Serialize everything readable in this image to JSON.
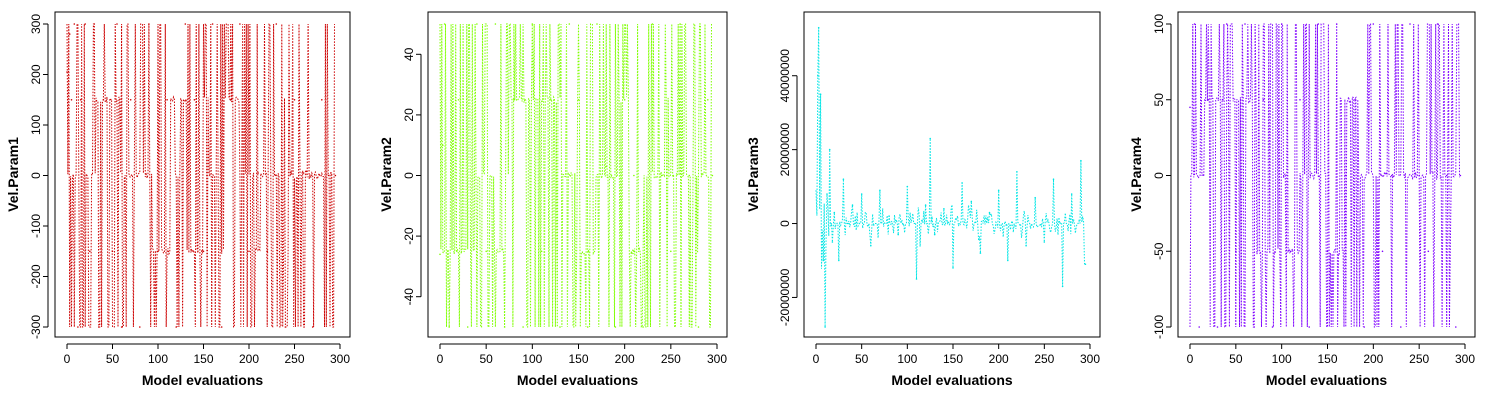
{
  "chart_data": [
    {
      "type": "line",
      "line_style": "dotted",
      "color": "#cc0000",
      "xlabel": "Model evaluations",
      "ylabel": "Vel.Param1",
      "xlim": [
        0,
        300
      ],
      "ylim": [
        -300,
        300
      ],
      "xticks": [
        0,
        50,
        100,
        150,
        200,
        250,
        300
      ],
      "yticks": [
        -300,
        -200,
        -100,
        0,
        100,
        200,
        300
      ],
      "n_points": 295,
      "levels": [
        -300,
        -150,
        0,
        150,
        300
      ],
      "late_center": 2,
      "x": [
        0,
        3,
        5,
        8,
        12,
        15,
        20,
        25,
        30,
        35,
        40,
        50,
        55,
        60,
        70,
        80,
        90,
        100,
        110,
        120,
        130,
        140,
        150,
        160,
        170,
        180,
        190,
        200,
        210,
        220,
        230,
        240,
        250,
        260,
        270,
        280,
        290,
        295
      ],
      "y": [
        205,
        280,
        150,
        300,
        -300,
        150,
        300,
        -150,
        300,
        -300,
        150,
        -150,
        300,
        -300,
        150,
        -300,
        300,
        -150,
        150,
        -300,
        300,
        150,
        -150,
        300,
        -300,
        150,
        300,
        -150,
        5,
        -150,
        300,
        -300,
        150,
        5,
        -300,
        150,
        5,
        0
      ]
    },
    {
      "type": "line",
      "line_style": "dotted",
      "color": "#7fff00",
      "xlabel": "Model evaluations",
      "ylabel": "Vel.Param2",
      "xlim": [
        0,
        300
      ],
      "ylim": [
        -50,
        50
      ],
      "xticks": [
        0,
        50,
        100,
        150,
        200,
        250,
        300
      ],
      "yticks": [
        -40,
        -20,
        0,
        20,
        40
      ],
      "n_points": 295,
      "levels": [
        -50,
        -25,
        0,
        25,
        50
      ],
      "late_center": 0,
      "x": [
        0,
        3,
        5,
        10,
        20,
        30,
        40,
        50,
        60,
        70,
        80,
        90,
        100,
        110,
        120,
        130,
        140,
        150,
        160,
        170,
        180,
        190,
        200,
        210,
        220,
        230,
        240,
        250,
        260,
        270,
        280,
        290,
        295
      ],
      "y": [
        -26,
        10,
        50,
        -50,
        25,
        -50,
        50,
        -25,
        50,
        -50,
        25,
        -50,
        50,
        -25,
        25,
        -50,
        50,
        25,
        -50,
        50,
        3,
        -50,
        25,
        0,
        -50,
        50,
        0,
        -25,
        50,
        0,
        -50,
        25,
        0
      ]
    },
    {
      "type": "line",
      "line_style": "dotted",
      "color": "#00e5e5",
      "xlabel": "Model evaluations",
      "ylabel": "Vel.Param3",
      "xlim": [
        0,
        300
      ],
      "ylim": [
        -28000000,
        54000000
      ],
      "xticks": [
        0,
        50,
        100,
        150,
        200,
        250,
        300
      ],
      "yticks": [
        -20000000,
        0,
        20000000,
        40000000
      ],
      "ytick_labels": [
        "-20000000",
        "0",
        "20000000",
        "40000000"
      ],
      "n_points": 295,
      "x": [
        2,
        3,
        5,
        8,
        10,
        12,
        15,
        18,
        20,
        25,
        30,
        35,
        40,
        50,
        60,
        70,
        80,
        90,
        100,
        110,
        120,
        125,
        130,
        140,
        150,
        160,
        170,
        180,
        190,
        200,
        210,
        220,
        230,
        240,
        250,
        260,
        270,
        280,
        290,
        295
      ],
      "y": [
        40000000,
        53000000,
        35000000,
        -10000000,
        -28000000,
        8000000,
        20000000,
        -5000000,
        3000000,
        -10000000,
        12000000,
        0,
        5000000,
        8000000,
        -6000000,
        9000000,
        2000000,
        -3000000,
        10000000,
        -15000000,
        5000000,
        23000000,
        -3000000,
        4000000,
        -12000000,
        11000000,
        6000000,
        -8000000,
        3000000,
        9000000,
        -10000000,
        14000000,
        -6000000,
        7000000,
        -5000000,
        12000000,
        -17000000,
        8000000,
        17000000,
        -11000000
      ]
    },
    {
      "type": "line",
      "line_style": "dotted",
      "color": "#7f00ff",
      "xlabel": "Model evaluations",
      "ylabel": "Vel.Param4",
      "xlim": [
        0,
        300
      ],
      "ylim": [
        -100,
        100
      ],
      "xticks": [
        0,
        50,
        100,
        150,
        200,
        250,
        300
      ],
      "yticks": [
        -100,
        -50,
        0,
        50,
        100
      ],
      "n_points": 295,
      "levels": [
        -100,
        -50,
        0,
        50,
        100
      ],
      "late_center": 0,
      "x": [
        0,
        3,
        5,
        10,
        20,
        30,
        40,
        50,
        60,
        70,
        80,
        90,
        100,
        110,
        120,
        130,
        140,
        150,
        160,
        170,
        180,
        190,
        200,
        210,
        220,
        230,
        240,
        250,
        260,
        270,
        280,
        290,
        295
      ],
      "y": [
        45,
        30,
        100,
        -100,
        50,
        -100,
        100,
        -50,
        100,
        -100,
        50,
        -100,
        100,
        -50,
        50,
        -100,
        100,
        -50,
        100,
        0,
        50,
        -100,
        100,
        -50,
        0,
        -100,
        100,
        0,
        -50,
        100,
        0,
        -100,
        0
      ]
    }
  ]
}
